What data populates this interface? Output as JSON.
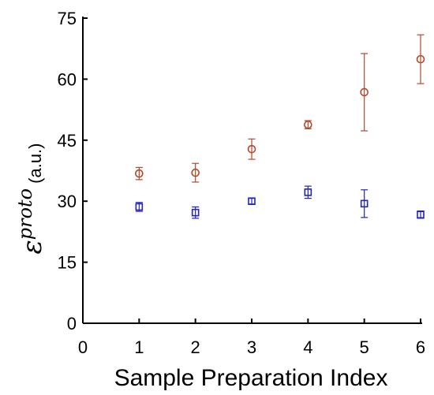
{
  "chart_data": {
    "type": "scatter",
    "title": "",
    "xlabel": "Sample Preparation Index",
    "ylabel": {
      "symbol": "ε",
      "superscript": "proto",
      "unit": "(a.u.)"
    },
    "xlim": [
      0,
      6
    ],
    "ylim": [
      0,
      75
    ],
    "x_ticks": [
      "0",
      "1",
      "2",
      "3",
      "4",
      "5",
      "6"
    ],
    "y_ticks": [
      "0",
      "15",
      "30",
      "45",
      "60",
      "75"
    ],
    "grid": false,
    "series": [
      {
        "marker": "circle",
        "color": "#b5482a",
        "x": [
          1,
          2,
          3,
          4,
          5,
          6
        ],
        "y": [
          36.8,
          37.0,
          42.8,
          48.8,
          56.8,
          64.9
        ],
        "error": [
          1.5,
          2.3,
          2.5,
          1.0,
          9.5,
          6.0
        ]
      },
      {
        "marker": "square",
        "color": "#2323c8",
        "x": [
          1,
          2,
          3,
          4,
          5,
          6
        ],
        "y": [
          28.6,
          27.2,
          30.0,
          32.2,
          29.4,
          26.7
        ],
        "error": [
          1.1,
          1.4,
          0.7,
          1.5,
          3.4,
          0.9
        ]
      }
    ]
  }
}
